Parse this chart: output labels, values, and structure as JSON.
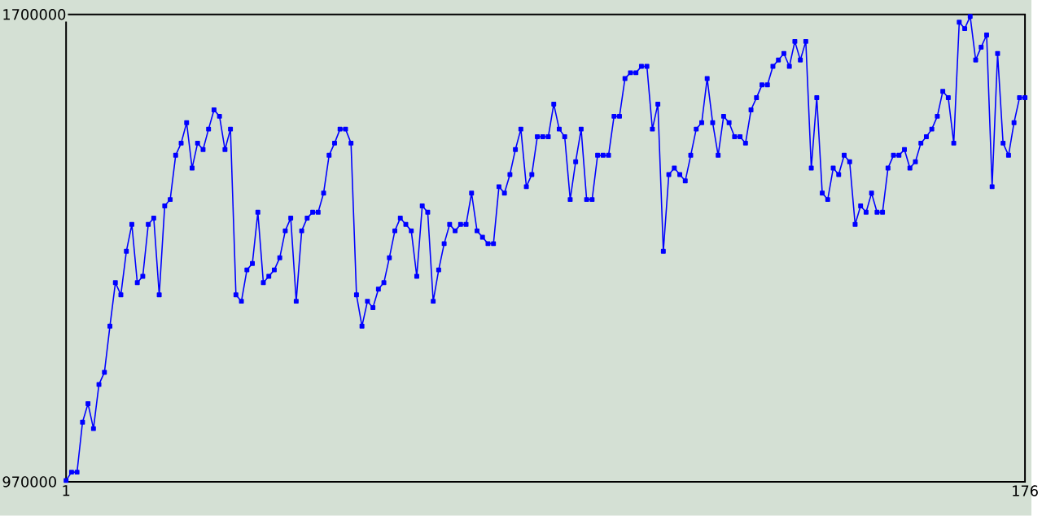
{
  "chart_data": {
    "type": "line",
    "color": "#0000ff",
    "marker": "square",
    "line_style": "solid",
    "x": [
      1,
      2,
      3,
      4,
      5,
      6,
      7,
      8,
      9,
      10,
      11,
      12,
      13,
      14,
      15,
      16,
      17,
      18,
      19,
      20,
      21,
      22,
      23,
      24,
      25,
      26,
      27,
      28,
      29,
      30,
      31,
      32,
      33,
      34,
      35,
      36,
      37,
      38,
      39,
      40,
      41,
      42,
      43,
      44,
      45,
      46,
      47,
      48,
      49,
      50,
      51,
      52,
      53,
      54,
      55,
      56,
      57,
      58,
      59,
      60,
      61,
      62,
      63,
      64,
      65,
      66,
      67,
      68,
      69,
      70,
      71,
      72,
      73,
      74,
      75,
      76,
      77,
      78,
      79,
      80,
      81,
      82,
      83,
      84,
      85,
      86,
      87,
      88,
      89,
      90,
      91,
      92,
      93,
      94,
      95,
      96,
      97,
      98,
      99,
      100,
      101,
      102,
      103,
      104,
      105,
      106,
      107,
      108,
      109,
      110,
      111,
      112,
      113,
      114,
      115,
      116,
      117,
      118,
      119,
      120,
      121,
      122,
      123,
      124,
      125,
      126,
      127,
      128,
      129,
      130,
      131,
      132,
      133,
      134,
      135,
      136,
      137,
      138,
      139,
      140,
      141,
      142,
      143,
      144,
      145,
      146,
      147,
      148,
      149,
      150,
      151,
      152,
      153,
      154,
      155,
      156,
      157,
      158,
      159,
      160,
      161,
      162,
      163,
      164,
      165,
      166,
      167,
      168,
      169,
      170,
      171,
      172,
      173,
      174,
      175,
      176
    ],
    "values": [
      972000,
      985000,
      985000,
      1063000,
      1092000,
      1053000,
      1122000,
      1141000,
      1213000,
      1281000,
      1262000,
      1330000,
      1372000,
      1281000,
      1291000,
      1372000,
      1382000,
      1262000,
      1401000,
      1411000,
      1480000,
      1499000,
      1531000,
      1460000,
      1499000,
      1489000,
      1521000,
      1551000,
      1541000,
      1489000,
      1521000,
      1262000,
      1252000,
      1301000,
      1311000,
      1391000,
      1281000,
      1291000,
      1301000,
      1320000,
      1362000,
      1382000,
      1252000,
      1362000,
      1382000,
      1391000,
      1391000,
      1421000,
      1480000,
      1499000,
      1521000,
      1521000,
      1499000,
      1262000,
      1213000,
      1252000,
      1242000,
      1271000,
      1281000,
      1320000,
      1362000,
      1382000,
      1372000,
      1362000,
      1291000,
      1401000,
      1391000,
      1252000,
      1301000,
      1342000,
      1372000,
      1362000,
      1372000,
      1372000,
      1421000,
      1362000,
      1352000,
      1342000,
      1342000,
      1431000,
      1421000,
      1450000,
      1489000,
      1521000,
      1431000,
      1450000,
      1509000,
      1509000,
      1509000,
      1560000,
      1521000,
      1509000,
      1411000,
      1470000,
      1521000,
      1411000,
      1411000,
      1480000,
      1480000,
      1480000,
      1541000,
      1541000,
      1600000,
      1609000,
      1609000,
      1619000,
      1619000,
      1521000,
      1560000,
      1330000,
      1450000,
      1460000,
      1450000,
      1440000,
      1480000,
      1521000,
      1531000,
      1600000,
      1531000,
      1480000,
      1541000,
      1531000,
      1509000,
      1509000,
      1499000,
      1551000,
      1570000,
      1590000,
      1590000,
      1619000,
      1629000,
      1639000,
      1619000,
      1658000,
      1629000,
      1658000,
      1460000,
      1570000,
      1421000,
      1411000,
      1460000,
      1450000,
      1480000,
      1470000,
      1372000,
      1401000,
      1391000,
      1421000,
      1391000,
      1391000,
      1460000,
      1480000,
      1480000,
      1489000,
      1460000,
      1470000,
      1499000,
      1509000,
      1521000,
      1541000,
      1580000,
      1570000,
      1499000,
      1688000,
      1678000,
      1697000,
      1629000,
      1649000,
      1668000,
      1431000,
      1639000,
      1499000,
      1480000,
      1531000,
      1570000,
      1570000
    ],
    "xlim": [
      1,
      176
    ],
    "ylim": [
      970000,
      1700000
    ],
    "xticks": [
      1,
      176
    ],
    "yticks": [
      970000,
      1700000
    ]
  }
}
